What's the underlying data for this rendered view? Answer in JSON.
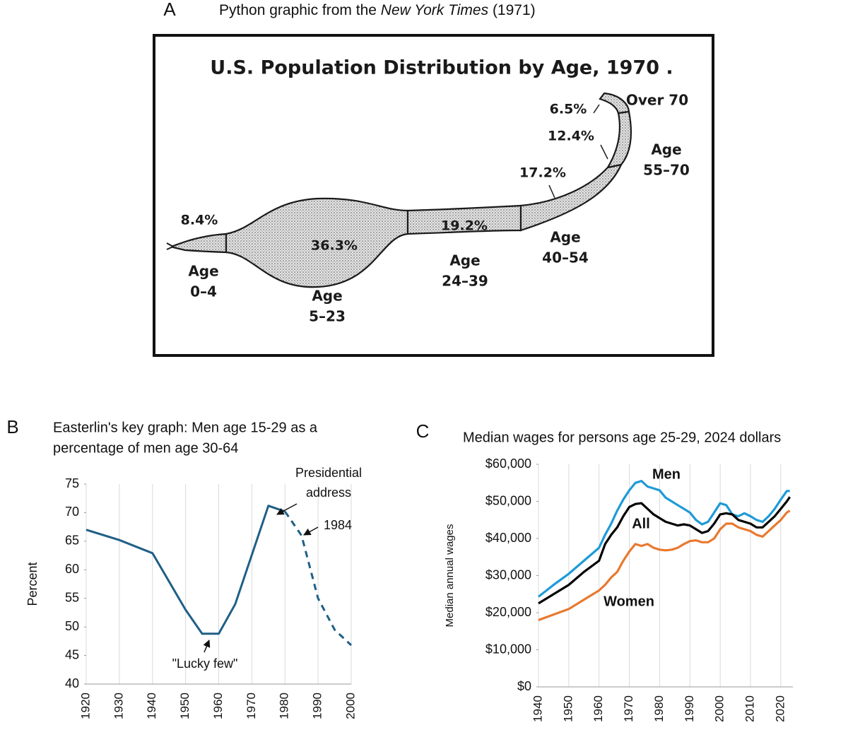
{
  "chart_data": [
    {
      "type": "python",
      "panel": "A",
      "title": [
        "Python graphic from the ",
        "New York Times",
        " (1971)"
      ],
      "subtitle": "U.S. Population Distribution by Age, 1970 .",
      "categories": [
        [
          "Age",
          "0–4"
        ],
        [
          "Age",
          "5–23"
        ],
        [
          "Age",
          "24–39"
        ],
        [
          "Age",
          "40–54"
        ],
        [
          "Age",
          "55–70"
        ],
        [
          "Over 70"
        ]
      ],
      "values": [
        8.4,
        36.3,
        19.2,
        17.2,
        12.4,
        6.5
      ],
      "value_labels": [
        "8.4%",
        "36.3%",
        "19.2%",
        "17.2%",
        "12.4%",
        "6.5%"
      ],
      "color": "#d0d0d0"
    },
    {
      "type": "line",
      "panel": "B",
      "title": [
        "Easterlin's key graph: Men age 15-29 as a",
        "percentage of men age 30-64"
      ],
      "ylabel": "Percent",
      "x": [
        1920,
        1930,
        1940,
        1950,
        1955,
        1960,
        1965,
        1975,
        1980,
        1985,
        1990,
        1995,
        2000
      ],
      "series": [
        {
          "color": "#1f5f86",
          "dashed": false,
          "values": [
            67,
            65.2,
            62.9,
            53,
            48.8,
            48.8,
            54,
            71.2,
            70.2,
            null,
            null,
            null,
            null
          ]
        },
        {
          "color": "#1f5f86",
          "dashed": true,
          "values": [
            null,
            null,
            null,
            null,
            null,
            null,
            null,
            null,
            70.2,
            66,
            55,
            49.5,
            46.8
          ]
        }
      ],
      "xlim": [
        1920,
        2000
      ],
      "xticks": [
        1920,
        1930,
        1940,
        1950,
        1960,
        1970,
        1980,
        1990,
        2000
      ],
      "ylim": [
        40,
        75
      ],
      "yticks": [
        40,
        45,
        50,
        55,
        60,
        65,
        70,
        75
      ],
      "grid": "x",
      "annotations": [
        [
          "Presidential",
          "address"
        ],
        [
          "1984"
        ],
        [
          "\"Lucky few\""
        ]
      ]
    },
    {
      "type": "line",
      "panel": "C",
      "title": [
        "Median wages for persons age 25-29, 2024 dollars"
      ],
      "ylabel": "Median annual wages",
      "x": [
        1940,
        1945,
        1950,
        1955,
        1960,
        1962,
        1964,
        1966,
        1968,
        1970,
        1972,
        1974,
        1976,
        1978,
        1980,
        1982,
        1984,
        1986,
        1988,
        1990,
        1992,
        1994,
        1996,
        1998,
        2000,
        2002,
        2004,
        2006,
        2008,
        2010,
        2012,
        2014,
        2016,
        2018,
        2020,
        2022,
        2023
      ],
      "series": [
        {
          "name": "Men",
          "color": "#1e9bd7",
          "values": [
            24300,
            27500,
            30500,
            34000,
            37500,
            41000,
            44000,
            47500,
            50500,
            53000,
            55000,
            55500,
            54000,
            53500,
            53000,
            51000,
            50000,
            49000,
            48000,
            47000,
            45000,
            43800,
            44500,
            47000,
            49500,
            49000,
            46500,
            46000,
            46800,
            46000,
            45000,
            44500,
            46000,
            48000,
            50500,
            52800,
            52800
          ]
        },
        {
          "name": "All",
          "color": "#000000",
          "values": [
            22500,
            25000,
            27500,
            31000,
            34000,
            38500,
            41000,
            43000,
            46000,
            48500,
            49300,
            49500,
            48000,
            46500,
            45500,
            44500,
            44000,
            43500,
            43800,
            43500,
            42500,
            41500,
            42000,
            44000,
            46500,
            46800,
            46500,
            45000,
            44500,
            44000,
            43000,
            43000,
            44500,
            46000,
            48000,
            50000,
            51200
          ]
        },
        {
          "name": "Women",
          "color": "#e8792f",
          "values": [
            18000,
            19500,
            21000,
            23500,
            26000,
            27500,
            29500,
            31000,
            34000,
            36500,
            38500,
            38000,
            38500,
            37500,
            37000,
            36800,
            37000,
            37500,
            38500,
            39300,
            39500,
            39000,
            39000,
            40000,
            42500,
            44000,
            44000,
            43000,
            42500,
            42000,
            41000,
            40500,
            42000,
            43500,
            45000,
            47000,
            47500
          ]
        }
      ],
      "xlim": [
        1940,
        2024
      ],
      "xticks": [
        1940,
        1950,
        1960,
        1970,
        1980,
        1990,
        2000,
        2010,
        2020
      ],
      "ylim": [
        0,
        60000
      ],
      "yticks": [
        {
          "value": 0,
          "label": "$0"
        },
        {
          "value": 10000,
          "label": "$10,000"
        },
        {
          "value": 20000,
          "label": "$20,000"
        },
        {
          "value": 30000,
          "label": "$30,000"
        },
        {
          "value": 40000,
          "label": "$40,000"
        },
        {
          "value": 50000,
          "label": "$50,000"
        },
        {
          "value": 60000,
          "label": "$60,000"
        }
      ],
      "grid": "x"
    }
  ]
}
